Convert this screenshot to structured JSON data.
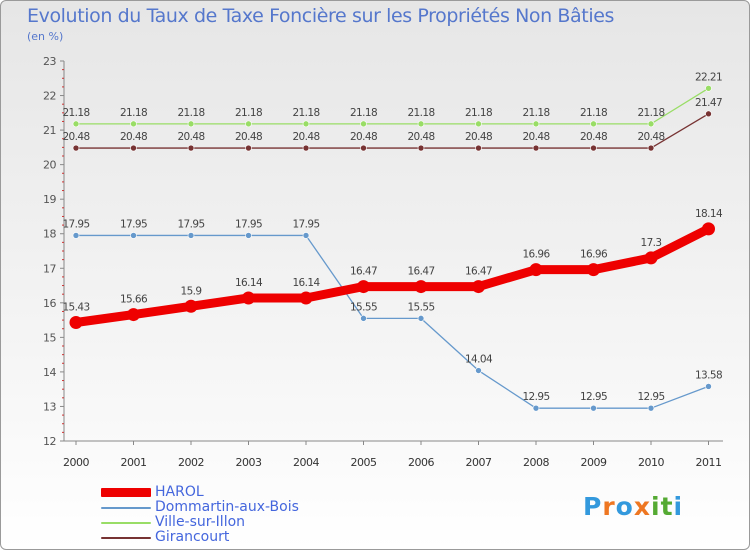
{
  "chart_data": {
    "type": "line",
    "title": "Evolution du Taux de Taxe Foncière sur les Propriétés Non Bâties",
    "subtitle": "(en %)",
    "xlabel": "",
    "ylabel": "",
    "x": [
      "2000",
      "2001",
      "2002",
      "2003",
      "2004",
      "2005",
      "2006",
      "2007",
      "2008",
      "2009",
      "2010",
      "2011"
    ],
    "ylim": [
      12,
      23
    ],
    "yticks": [
      "12",
      "13",
      "14",
      "15",
      "16",
      "17",
      "18",
      "19",
      "20",
      "21",
      "22",
      "23"
    ],
    "grid": false,
    "legend_position": "bottom-left",
    "series": [
      {
        "name": "HAROL",
        "color": "#ee0000",
        "values": [
          15.43,
          15.66,
          15.9,
          16.14,
          16.14,
          16.47,
          16.47,
          16.47,
          16.96,
          16.96,
          17.3,
          18.14
        ],
        "labels": [
          "15.43",
          "15.66",
          "15.9",
          "16.14",
          "16.14",
          "16.47",
          "16.47",
          "16.47",
          "16.96",
          "16.96",
          "17.3",
          "18.14"
        ]
      },
      {
        "name": "Dommartin-aux-Bois",
        "color": "#6699cc",
        "values": [
          17.95,
          17.95,
          17.95,
          17.95,
          17.95,
          15.55,
          15.55,
          14.04,
          12.95,
          12.95,
          12.95,
          13.58
        ],
        "labels": [
          "17.95",
          "17.95",
          "17.95",
          "17.95",
          "17.95",
          "15.55",
          "15.55",
          "14.04",
          "12.95",
          "12.95",
          "12.95",
          "13.58"
        ]
      },
      {
        "name": "Ville-sur-Illon",
        "color": "#99dd66",
        "values": [
          21.18,
          21.18,
          21.18,
          21.18,
          21.18,
          21.18,
          21.18,
          21.18,
          21.18,
          21.18,
          21.18,
          22.21
        ],
        "labels": [
          "21.18",
          "21.18",
          "21.18",
          "21.18",
          "21.18",
          "21.18",
          "21.18",
          "21.18",
          "21.18",
          "21.18",
          "21.18",
          "22.21"
        ]
      },
      {
        "name": "Girancourt",
        "color": "#773333",
        "values": [
          20.48,
          20.48,
          20.48,
          20.48,
          20.48,
          20.48,
          20.48,
          20.48,
          20.48,
          20.48,
          20.48,
          21.47
        ],
        "labels": [
          "20.48",
          "20.48",
          "20.48",
          "20.48",
          "20.48",
          "20.48",
          "20.48",
          "20.48",
          "20.48",
          "20.48",
          "20.48",
          "21.47"
        ]
      }
    ]
  },
  "branding": {
    "logo_text": "Proxiti",
    "logo_colors": [
      "#3399dd",
      "#ee7722",
      "#3399dd",
      "#ee7722",
      "#55aa33",
      "#55aa33",
      "#3399dd"
    ]
  }
}
